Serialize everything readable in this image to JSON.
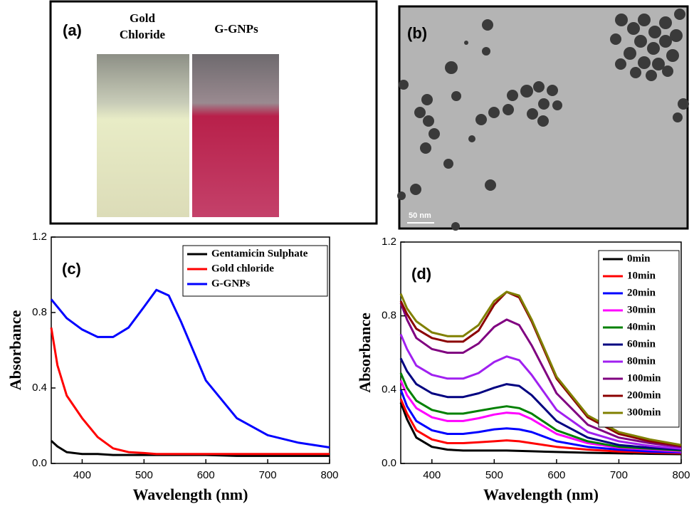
{
  "panels": {
    "a": {
      "label": "(a)",
      "left_caption": [
        "Gold",
        "Chloride"
      ],
      "right_caption": "G-GNPs"
    },
    "b": {
      "label": "(b)",
      "scale_bar": "50 nm"
    }
  },
  "chart_data": [
    {
      "type": "line",
      "annotation": "(c)",
      "x_label": "Wavelength (nm)",
      "y_label": "Absorbance",
      "x": [
        350,
        360,
        375,
        400,
        425,
        450,
        475,
        500,
        520,
        540,
        560,
        600,
        650,
        700,
        750,
        800
      ],
      "xlim": [
        350,
        800
      ],
      "xticks": [
        400,
        500,
        600,
        700,
        800
      ],
      "ylim": [
        0,
        1.2
      ],
      "yticks": [
        {
          "value": 0,
          "label": "0.0"
        },
        0.4,
        0.8,
        1.2
      ],
      "legend": "top-right",
      "series": [
        {
          "name": "Gentamicin Sulphate",
          "color": "#000000",
          "values": [
            0.12,
            0.09,
            0.06,
            0.05,
            0.05,
            0.045,
            0.045,
            0.045,
            0.045,
            0.045,
            0.045,
            0.045,
            0.04,
            0.04,
            0.04,
            0.04
          ]
        },
        {
          "name": "Gold chloride",
          "color": "#ff0000",
          "values": [
            0.72,
            0.52,
            0.36,
            0.24,
            0.14,
            0.08,
            0.06,
            0.055,
            0.05,
            0.05,
            0.05,
            0.05,
            0.05,
            0.05,
            0.05,
            0.05
          ]
        },
        {
          "name": "G-GNPs",
          "color": "#0000ff",
          "values": [
            0.87,
            0.83,
            0.77,
            0.71,
            0.67,
            0.67,
            0.72,
            0.83,
            0.92,
            0.89,
            0.75,
            0.44,
            0.24,
            0.15,
            0.11,
            0.085
          ]
        }
      ]
    },
    {
      "type": "line",
      "annotation": "(d)",
      "x_label": "Wavelength (nm)",
      "y_label": "Absorbance",
      "x": [
        350,
        360,
        375,
        400,
        425,
        450,
        475,
        500,
        520,
        540,
        560,
        600,
        650,
        700,
        750,
        800
      ],
      "xlim": [
        350,
        800
      ],
      "xticks": [
        400,
        500,
        600,
        700,
        800
      ],
      "ylim": [
        0,
        1.2
      ],
      "yticks": [
        {
          "value": 0,
          "label": "0.0"
        },
        0.4,
        0.8,
        1.2
      ],
      "legend": "top-right",
      "series": [
        {
          "name": "0min",
          "color": "#000000",
          "values": [
            0.33,
            0.24,
            0.14,
            0.09,
            0.075,
            0.07,
            0.07,
            0.07,
            0.07,
            0.068,
            0.066,
            0.062,
            0.058,
            0.055,
            0.052,
            0.05
          ]
        },
        {
          "name": "10min",
          "color": "#ff0000",
          "values": [
            0.35,
            0.27,
            0.18,
            0.13,
            0.11,
            0.11,
            0.115,
            0.12,
            0.125,
            0.12,
            0.11,
            0.09,
            0.075,
            0.065,
            0.06,
            0.055
          ]
        },
        {
          "name": "20min",
          "color": "#0000ff",
          "values": [
            0.4,
            0.31,
            0.23,
            0.18,
            0.16,
            0.16,
            0.17,
            0.185,
            0.19,
            0.185,
            0.17,
            0.12,
            0.09,
            0.075,
            0.065,
            0.06
          ]
        },
        {
          "name": "30min",
          "color": "#ff00ff",
          "values": [
            0.45,
            0.37,
            0.3,
            0.25,
            0.23,
            0.23,
            0.245,
            0.265,
            0.275,
            0.27,
            0.24,
            0.16,
            0.11,
            0.085,
            0.075,
            0.065
          ]
        },
        {
          "name": "40min",
          "color": "#008000",
          "values": [
            0.49,
            0.41,
            0.34,
            0.29,
            0.27,
            0.27,
            0.285,
            0.3,
            0.31,
            0.3,
            0.27,
            0.18,
            0.12,
            0.09,
            0.08,
            0.07
          ]
        },
        {
          "name": "60min",
          "color": "#000080",
          "values": [
            0.57,
            0.5,
            0.43,
            0.38,
            0.36,
            0.36,
            0.38,
            0.41,
            0.43,
            0.42,
            0.37,
            0.23,
            0.14,
            0.1,
            0.085,
            0.075
          ]
        },
        {
          "name": "80min",
          "color": "#a020f0",
          "values": [
            0.7,
            0.62,
            0.53,
            0.48,
            0.46,
            0.46,
            0.49,
            0.55,
            0.58,
            0.56,
            0.48,
            0.29,
            0.17,
            0.12,
            0.095,
            0.08
          ]
        },
        {
          "name": "100min",
          "color": "#800080",
          "values": [
            0.87,
            0.78,
            0.68,
            0.62,
            0.6,
            0.6,
            0.65,
            0.74,
            0.78,
            0.75,
            0.64,
            0.38,
            0.21,
            0.14,
            0.11,
            0.09
          ]
        },
        {
          "name": "200min",
          "color": "#8b0000",
          "values": [
            0.88,
            0.81,
            0.73,
            0.68,
            0.66,
            0.66,
            0.72,
            0.86,
            0.93,
            0.9,
            0.77,
            0.46,
            0.25,
            0.16,
            0.12,
            0.095
          ]
        },
        {
          "name": "300min",
          "color": "#808000",
          "values": [
            0.92,
            0.84,
            0.77,
            0.71,
            0.69,
            0.69,
            0.75,
            0.88,
            0.93,
            0.91,
            0.78,
            0.47,
            0.26,
            0.17,
            0.13,
            0.1
          ]
        }
      ]
    }
  ]
}
